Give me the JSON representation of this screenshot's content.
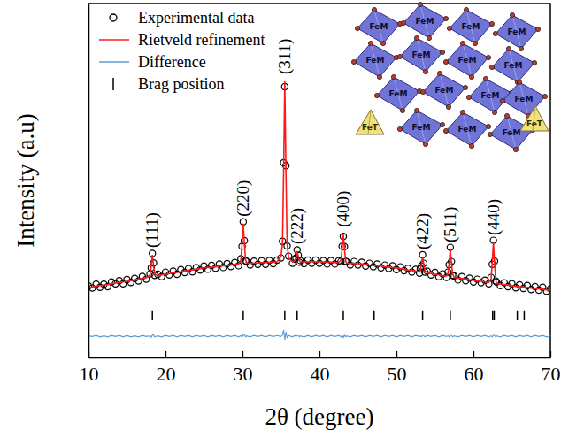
{
  "chart_data": {
    "type": "line",
    "x_label": "2θ (degree)",
    "y_label": "Intensity (a.u)",
    "xlim": [
      10,
      70
    ],
    "xticks": [
      10,
      20,
      30,
      40,
      50,
      60,
      70
    ],
    "ylim": [
      0,
      100
    ],
    "tick_labels": "x",
    "legend": "upper left",
    "x": [
      10,
      10.5,
      11,
      11.5,
      12,
      12.5,
      13,
      13.5,
      14,
      14.5,
      15,
      15.5,
      16,
      16.5,
      17,
      17.5,
      18,
      18.15,
      18.3,
      18.45,
      18.6,
      19,
      19.5,
      20,
      20.5,
      21,
      21.5,
      22,
      22.5,
      23,
      23.5,
      24,
      24.5,
      25,
      25.5,
      26,
      26.5,
      27,
      27.5,
      28,
      28.5,
      29,
      29.5,
      29.8,
      29.95,
      30.1,
      30.25,
      30.4,
      30.5,
      31,
      31.5,
      32,
      32.5,
      33,
      33.5,
      34,
      34.5,
      35,
      35.2,
      35.35,
      35.5,
      35.65,
      35.8,
      36,
      36.5,
      36.8,
      36.95,
      37.1,
      37.25,
      37.4,
      37.5,
      38,
      38.5,
      39,
      39.5,
      40,
      40.5,
      41,
      41.5,
      42,
      42.5,
      42.8,
      42.95,
      43.1,
      43.25,
      43.4,
      43.5,
      44,
      44.5,
      45,
      45.5,
      46,
      46.5,
      47,
      47.5,
      48,
      48.5,
      49,
      49.5,
      50,
      50.5,
      51,
      51.5,
      52,
      52.5,
      53,
      53.1,
      53.25,
      53.4,
      53.55,
      53.7,
      54,
      54.5,
      55,
      55.5,
      56,
      56.5,
      56.7,
      56.85,
      57,
      57.15,
      57.3,
      57.5,
      58,
      58.5,
      59,
      59.5,
      60,
      60.5,
      61,
      61.5,
      62,
      62.3,
      62.45,
      62.6,
      62.75,
      62.9,
      63,
      63.5,
      64,
      64.5,
      65,
      65.5,
      66,
      66.5,
      67,
      67.5,
      68,
      68.5,
      69,
      69.5,
      70
    ],
    "series": [
      {
        "name": "Experimental data",
        "type": "scatter",
        "marker": "circle",
        "color": "#000000",
        "values": [
          20.2,
          19.6,
          20.7,
          19.8,
          20.7,
          20.0,
          21.3,
          20.8,
          21.7,
          20.8,
          22.0,
          21.2,
          22.3,
          21.6,
          22.9,
          22.1,
          23.6,
          25.3,
          29.4,
          26.7,
          23.2,
          23.5,
          22.8,
          24.1,
          23.3,
          24.4,
          23.5,
          24.8,
          24.0,
          25.1,
          24.2,
          25.4,
          24.7,
          25.8,
          24.9,
          26.0,
          25.2,
          26.4,
          25.4,
          26.5,
          25.7,
          26.8,
          25.9,
          27.9,
          31.4,
          38.3,
          33.0,
          27.3,
          27.2,
          26.1,
          27.2,
          26.3,
          27.3,
          26.3,
          27.4,
          26.5,
          27.5,
          28.1,
          32.8,
          55.0,
          76.5,
          54.2,
          31.5,
          28.6,
          26.6,
          27.8,
          28.1,
          30.4,
          28.9,
          26.9,
          27.4,
          26.5,
          27.5,
          26.6,
          27.5,
          26.6,
          27.4,
          26.4,
          27.4,
          26.4,
          27.3,
          27.1,
          31.4,
          34.2,
          31.3,
          27.1,
          27.1,
          26.1,
          27.1,
          26.1,
          26.9,
          25.8,
          26.6,
          25.6,
          26.4,
          25.3,
          26.1,
          25.1,
          25.9,
          24.8,
          25.6,
          24.5,
          25.2,
          24.1,
          24.9,
          23.8,
          25.0,
          25.8,
          29.0,
          26.6,
          24.1,
          24.4,
          23.3,
          24.0,
          22.8,
          23.6,
          22.6,
          24.1,
          26.2,
          31.1,
          27.1,
          23.2,
          23.0,
          21.9,
          22.8,
          21.7,
          22.4,
          21.3,
          22.1,
          21.1,
          21.8,
          20.8,
          22.6,
          26.3,
          33.1,
          27.2,
          21.6,
          21.3,
          20.3,
          21.1,
          20.0,
          20.8,
          19.7,
          20.5,
          19.5,
          20.3,
          19.2,
          20.0,
          19.0,
          19.8,
          18.7,
          19.4
        ]
      },
      {
        "name": "Rietveld refinement",
        "type": "line",
        "line_style": "solid",
        "color": "#ff1a1a",
        "values": [
          19.8,
          19.9,
          20.1,
          20.3,
          20.5,
          20.6,
          20.8,
          21.0,
          21.2,
          21.3,
          21.5,
          21.7,
          21.9,
          22.1,
          22.3,
          22.5,
          23.3,
          25.9,
          29.0,
          26.0,
          23.6,
          23.1,
          23.3,
          23.5,
          23.7,
          23.9,
          24.0,
          24.2,
          24.4,
          24.6,
          24.7,
          24.9,
          25.1,
          25.3,
          25.4,
          25.5,
          25.6,
          25.8,
          25.9,
          26.0,
          26.1,
          26.3,
          26.4,
          27.5,
          32.1,
          37.8,
          32.2,
          27.7,
          26.8,
          26.6,
          26.7,
          26.7,
          26.8,
          26.8,
          26.9,
          26.9,
          27.0,
          28.5,
          32.1,
          52.5,
          78.0,
          52.5,
          32.1,
          28.2,
          27.0,
          27.3,
          28.5,
          30.0,
          28.5,
          27.3,
          27.0,
          27.0,
          27.0,
          27.0,
          27.0,
          27.0,
          27.0,
          26.9,
          26.9,
          26.8,
          26.8,
          27.5,
          30.8,
          34.8,
          30.7,
          27.5,
          26.7,
          26.6,
          26.6,
          26.5,
          26.4,
          26.3,
          26.1,
          26.0,
          25.9,
          25.8,
          25.6,
          25.5,
          25.4,
          25.3,
          25.1,
          24.9,
          24.7,
          24.6,
          24.4,
          24.2,
          24.6,
          26.3,
          28.5,
          26.2,
          24.5,
          23.9,
          23.7,
          23.5,
          23.3,
          23.1,
          23.0,
          23.7,
          26.7,
          30.5,
          26.6,
          23.6,
          22.6,
          22.4,
          22.3,
          22.1,
          21.9,
          21.8,
          21.6,
          21.5,
          21.3,
          21.2,
          22.2,
          26.8,
          32.5,
          26.7,
          22.0,
          20.9,
          20.7,
          20.6,
          20.4,
          20.3,
          20.1,
          20.0,
          19.9,
          19.8,
          19.6,
          19.5,
          19.4,
          19.3,
          19.1,
          19.0
        ]
      },
      {
        "name": "Difference",
        "type": "line",
        "line_style": "solid",
        "color": "#5b9bd5",
        "values": [
          6.1,
          5.9,
          6.2,
          5.8,
          6.1,
          5.8,
          6.2,
          5.9,
          6.2,
          5.8,
          6.2,
          5.8,
          6.1,
          5.8,
          6.2,
          5.9,
          6.1,
          5.7,
          6.3,
          6.4,
          5.8,
          6.1,
          5.8,
          6.2,
          5.9,
          6.2,
          5.8,
          6.2,
          5.9,
          6.2,
          5.8,
          6.2,
          5.9,
          6.2,
          5.8,
          6.2,
          5.9,
          6.2,
          5.8,
          6.2,
          5.9,
          6.2,
          5.8,
          6.2,
          5.7,
          6.3,
          6.4,
          5.8,
          6.1,
          5.8,
          6.2,
          5.9,
          6.2,
          5.8,
          6.2,
          5.9,
          6.2,
          5.9,
          6.3,
          7.8,
          5.0,
          7.2,
          5.6,
          6.2,
          5.8,
          6.2,
          5.9,
          6.2,
          6.2,
          5.8,
          6.1,
          5.8,
          6.2,
          5.8,
          6.2,
          5.9,
          6.2,
          5.8,
          6.2,
          5.9,
          6.2,
          5.8,
          6.3,
          5.6,
          6.3,
          5.8,
          6.1,
          5.8,
          6.2,
          5.9,
          6.2,
          5.8,
          6.2,
          5.9,
          6.2,
          5.8,
          6.2,
          5.9,
          6.2,
          5.8,
          6.2,
          5.9,
          6.2,
          5.8,
          6.2,
          5.9,
          6.1,
          5.8,
          6.2,
          6.2,
          5.8,
          6.2,
          5.9,
          6.2,
          5.8,
          6.2,
          5.9,
          6.1,
          5.8,
          6.3,
          6.2,
          5.8,
          6.1,
          5.8,
          6.2,
          5.9,
          6.2,
          5.8,
          6.2,
          5.9,
          6.2,
          5.8,
          6.1,
          5.8,
          6.3,
          6.2,
          5.8,
          6.1,
          5.8,
          6.2,
          5.9,
          6.2,
          5.8,
          6.2,
          5.9,
          6.2,
          5.8,
          6.2,
          5.9,
          6.2,
          5.8,
          6.1
        ]
      }
    ],
    "bragg": {
      "name": "Brag position",
      "color": "#000000",
      "positions": [
        18.3,
        30.1,
        35.5,
        37.1,
        43.1,
        47.1,
        53.4,
        57.0,
        62.5,
        62.7,
        65.7,
        66.6
      ]
    },
    "annotations": [
      {
        "text": "(111)",
        "x": 18.3
      },
      {
        "text": "(220)",
        "x": 30.1
      },
      {
        "text": "(311)",
        "x": 35.5
      },
      {
        "text": "(222)",
        "x": 37.1
      },
      {
        "text": "(400)",
        "x": 43.1
      },
      {
        "text": "(422)",
        "x": 53.4
      },
      {
        "text": "(511)",
        "x": 57.0
      },
      {
        "text": "(440)",
        "x": 62.6
      }
    ]
  },
  "inset": {
    "octahedron_label": "FeM",
    "tetrahedron_label": "FeT"
  }
}
